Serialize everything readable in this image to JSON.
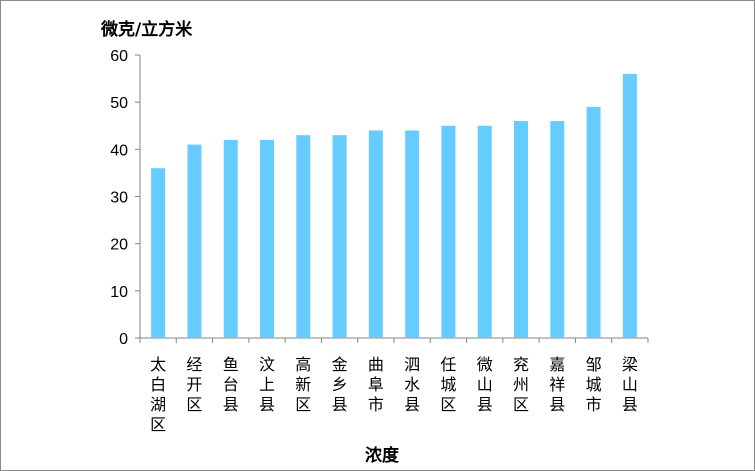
{
  "chart_data": {
    "type": "bar",
    "title": "",
    "ylabel": "微克/立方米",
    "xlabel": "浓度",
    "categories": [
      "太白湖区",
      "经开区",
      "鱼台县",
      "汶上县",
      "高新区",
      "金乡县",
      "曲阜市",
      "泗水县",
      "任城区",
      "微山县",
      "兖州区",
      "嘉祥县",
      "邹城市",
      "梁山县"
    ],
    "series": [
      {
        "values": [
          36,
          41,
          42,
          42,
          43,
          43,
          44,
          44,
          45,
          45,
          46,
          46,
          49,
          56
        ]
      }
    ],
    "ylim": [
      0,
      60
    ],
    "yticks": [
      "0",
      "10",
      "20",
      "30",
      "40",
      "50",
      "60"
    ],
    "grid": false,
    "legend": "none",
    "bar_color": "#66ccff"
  }
}
